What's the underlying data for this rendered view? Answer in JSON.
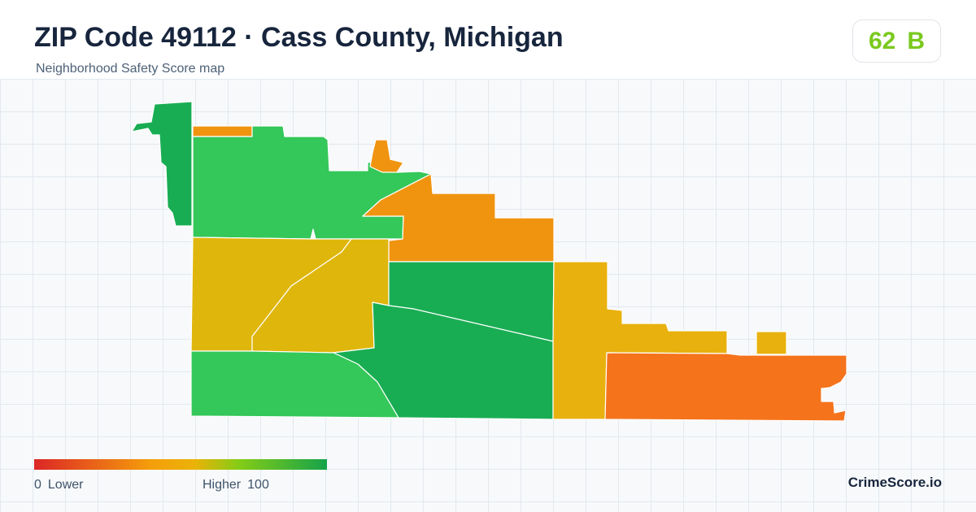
{
  "header": {
    "title": "ZIP Code 49112 · Cass County, Michigan",
    "subtitle": "Neighborhood Safety Score map"
  },
  "score": {
    "value": "62",
    "grade": "B",
    "color": "#7ac91e"
  },
  "legend": {
    "min_value": "0",
    "min_label": "Lower",
    "max_label": "Higher",
    "max_value": "100",
    "gradient": [
      "#dc2626",
      "#f59e0b",
      "#eab308",
      "#84cc16",
      "#16a34a"
    ]
  },
  "brand": "CrimeScore.io",
  "palette": {
    "dark_green": "#19ad53",
    "green": "#34c759",
    "yellow": "#dfb60c",
    "amber": "#e9b10e",
    "orange": "#f09410",
    "deep_orange": "#f5731b"
  }
}
